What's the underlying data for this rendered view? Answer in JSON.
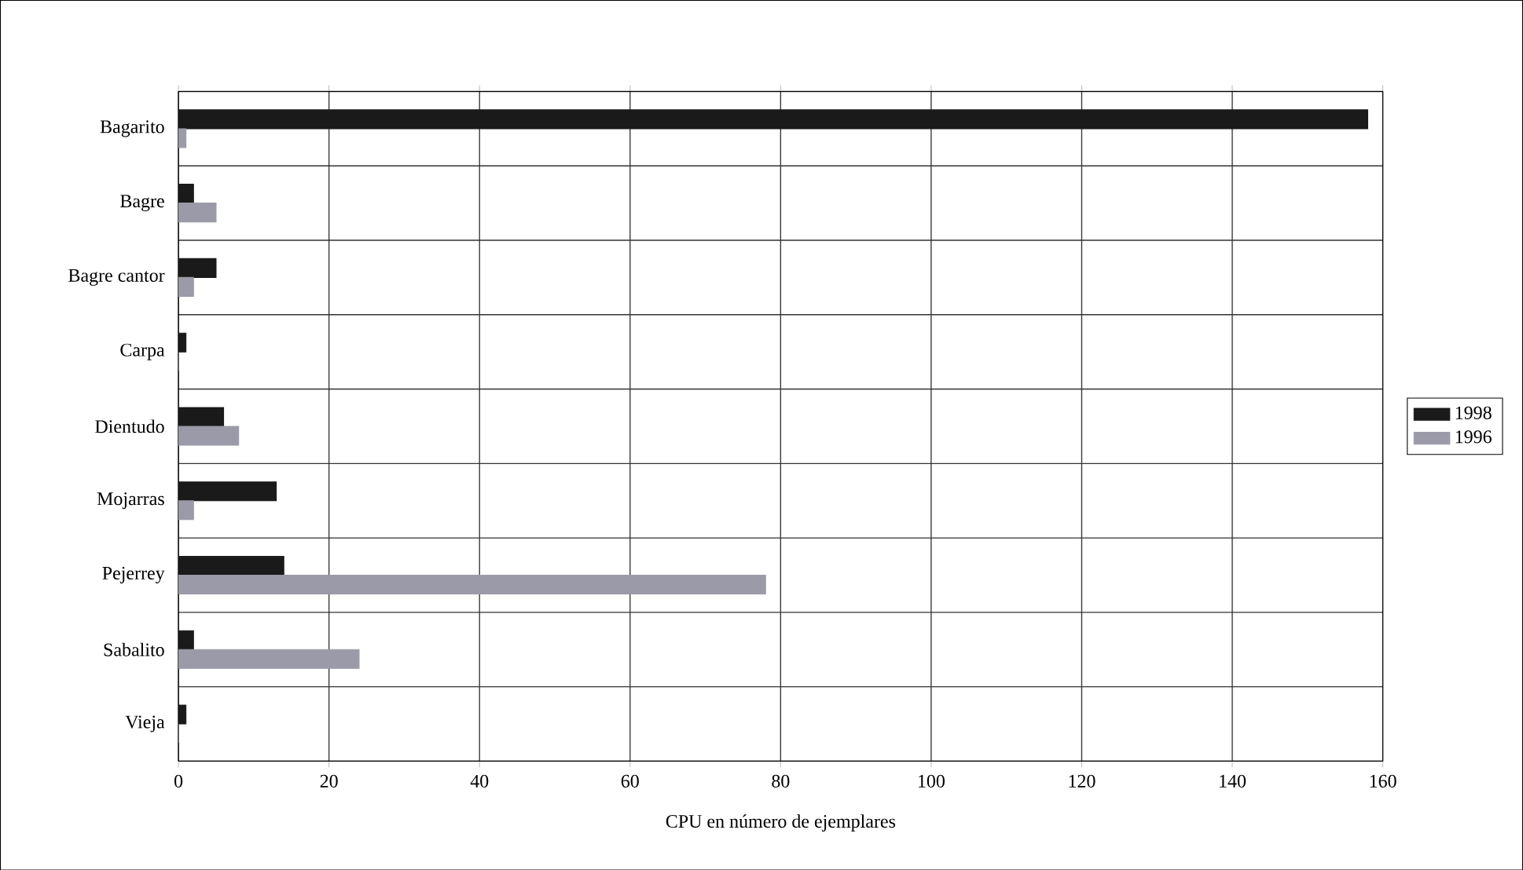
{
  "chart_data": {
    "type": "bar",
    "orientation": "horizontal",
    "xlabel": "CPU en número de ejemplares",
    "categories": [
      "Bagarito",
      "Bagre",
      "Bagre cantor",
      "Carpa",
      "Dientudo",
      "Mojarras",
      "Pejerrey",
      "Sabalito",
      "Vieja"
    ],
    "series": [
      {
        "name": "1998",
        "color": "#1a1a1a",
        "values": [
          158,
          2,
          5,
          1,
          6,
          13,
          14,
          2,
          1
        ]
      },
      {
        "name": "1996",
        "color": "#9a9aa8",
        "values": [
          1,
          5,
          2,
          0,
          8,
          2,
          78,
          24,
          0
        ]
      }
    ],
    "xlim": [
      0,
      160
    ],
    "xticks": [
      0,
      20,
      40,
      60,
      80,
      100,
      120,
      140,
      160
    ],
    "grid": true,
    "legend": "right"
  }
}
